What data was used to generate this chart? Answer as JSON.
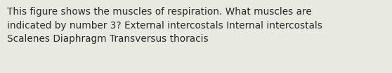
{
  "text": "This figure shows the muscles of respiration. What muscles are\nindicated by number 3? External intercostals Internal intercostals\nScalenes Diaphragm Transversus thoracis",
  "background_color": "#e8e9e0",
  "text_color": "#2a2a2a",
  "font_size": 9.8,
  "fig_width": 5.58,
  "fig_height": 1.05,
  "dpi": 100
}
